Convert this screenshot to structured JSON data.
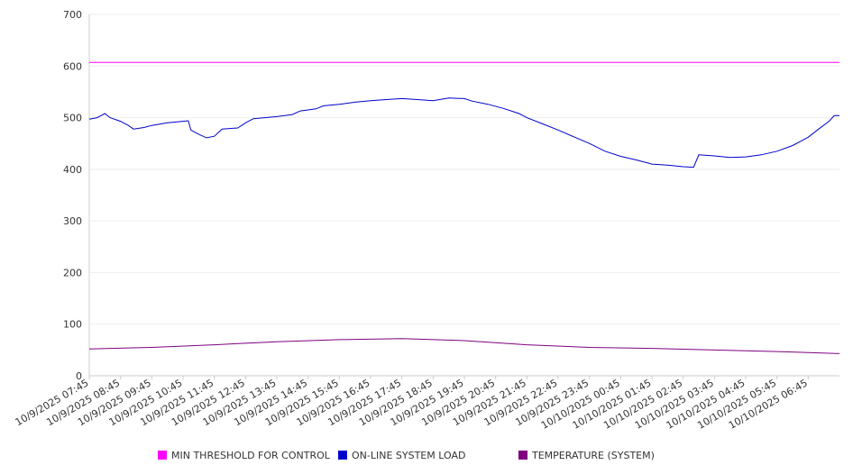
{
  "chart_data": {
    "type": "line",
    "title": "",
    "xlabel": "",
    "ylabel": "",
    "ylim": [
      0,
      700
    ],
    "yticks": [
      0,
      100,
      200,
      300,
      400,
      500,
      600,
      700
    ],
    "grid": true,
    "legend_position": "bottom",
    "xlim": [
      "2025-10-09T07:45",
      "2025-10-10T07:45"
    ],
    "x_tick_labels": [
      "10/9/2025 07:45",
      "10/9/2025 08:45",
      "10/9/2025 09:45",
      "10/9/2025 10:45",
      "10/9/2025 11:45",
      "10/9/2025 12:45",
      "10/9/2025 13:45",
      "10/9/2025 14:45",
      "10/9/2025 15:45",
      "10/9/2025 16:45",
      "10/9/2025 17:45",
      "10/9/2025 18:45",
      "10/9/2025 19:45",
      "10/9/2025 20:45",
      "10/9/2025 21:45",
      "10/9/2025 22:45",
      "10/9/2025 23:45",
      "10/10/2025 00:45",
      "10/10/2025 01:45",
      "10/10/2025 02:45",
      "10/10/2025 03:45",
      "10/10/2025 04:45",
      "10/10/2025 05:45",
      "10/10/2025 06:45"
    ],
    "series": [
      {
        "name": "MIN THRESHOLD FOR CONTROL",
        "color": "#ff00ff",
        "points": [
          [
            "2025-10-09T07:45",
            607
          ],
          [
            "2025-10-10T07:45",
            607
          ]
        ]
      },
      {
        "name": "ON-LINE SYSTEM LOAD",
        "color": "#0000cc",
        "points": [
          [
            "2025-10-09T07:45",
            497
          ],
          [
            "2025-10-09T08:00",
            500
          ],
          [
            "2025-10-09T08:15",
            508
          ],
          [
            "2025-10-09T08:25",
            500
          ],
          [
            "2025-10-09T08:45",
            493
          ],
          [
            "2025-10-09T09:00",
            485
          ],
          [
            "2025-10-09T09:10",
            478
          ],
          [
            "2025-10-09T09:30",
            481
          ],
          [
            "2025-10-09T09:45",
            485
          ],
          [
            "2025-10-09T10:15",
            490
          ],
          [
            "2025-10-09T10:45",
            493
          ],
          [
            "2025-10-09T10:55",
            494
          ],
          [
            "2025-10-09T11:00",
            476
          ],
          [
            "2025-10-09T11:15",
            468
          ],
          [
            "2025-10-09T11:30",
            461
          ],
          [
            "2025-10-09T11:45",
            464
          ],
          [
            "2025-10-09T12:00",
            478
          ],
          [
            "2025-10-09T12:30",
            480
          ],
          [
            "2025-10-09T12:45",
            490
          ],
          [
            "2025-10-09T13:00",
            498
          ],
          [
            "2025-10-09T13:45",
            502
          ],
          [
            "2025-10-09T14:15",
            506
          ],
          [
            "2025-10-09T14:30",
            513
          ],
          [
            "2025-10-09T14:45",
            515
          ],
          [
            "2025-10-09T15:00",
            517
          ],
          [
            "2025-10-09T15:15",
            523
          ],
          [
            "2025-10-09T15:45",
            526
          ],
          [
            "2025-10-09T16:15",
            530
          ],
          [
            "2025-10-09T16:45",
            533
          ],
          [
            "2025-10-09T17:15",
            535
          ],
          [
            "2025-10-09T17:45",
            537
          ],
          [
            "2025-10-09T18:15",
            535
          ],
          [
            "2025-10-09T18:45",
            533
          ],
          [
            "2025-10-09T19:15",
            538
          ],
          [
            "2025-10-09T19:45",
            537
          ],
          [
            "2025-10-09T20:00",
            532
          ],
          [
            "2025-10-09T20:30",
            526
          ],
          [
            "2025-10-09T21:00",
            518
          ],
          [
            "2025-10-09T21:30",
            508
          ],
          [
            "2025-10-09T21:45",
            500
          ],
          [
            "2025-10-09T22:15",
            488
          ],
          [
            "2025-10-09T22:45",
            476
          ],
          [
            "2025-10-09T23:15",
            463
          ],
          [
            "2025-10-09T23:45",
            450
          ],
          [
            "2025-10-10T00:15",
            435
          ],
          [
            "2025-10-10T00:45",
            425
          ],
          [
            "2025-10-10T01:15",
            418
          ],
          [
            "2025-10-10T01:45",
            410
          ],
          [
            "2025-10-10T02:15",
            408
          ],
          [
            "2025-10-10T02:45",
            405
          ],
          [
            "2025-10-10T03:05",
            404
          ],
          [
            "2025-10-10T03:15",
            428
          ],
          [
            "2025-10-10T03:45",
            426
          ],
          [
            "2025-10-10T04:15",
            423
          ],
          [
            "2025-10-10T04:45",
            424
          ],
          [
            "2025-10-10T05:15",
            428
          ],
          [
            "2025-10-10T05:45",
            435
          ],
          [
            "2025-10-10T06:15",
            446
          ],
          [
            "2025-10-10T06:45",
            462
          ],
          [
            "2025-10-10T07:05",
            478
          ],
          [
            "2025-10-10T07:25",
            493
          ],
          [
            "2025-10-10T07:35",
            504
          ],
          [
            "2025-10-10T07:45",
            504
          ]
        ]
      },
      {
        "name": "TEMPERATURE (SYSTEM)",
        "color": "#800080",
        "points": [
          [
            "2025-10-09T07:45",
            52
          ],
          [
            "2025-10-09T09:45",
            55
          ],
          [
            "2025-10-09T11:45",
            60
          ],
          [
            "2025-10-09T13:45",
            66
          ],
          [
            "2025-10-09T15:45",
            70
          ],
          [
            "2025-10-09T17:45",
            72
          ],
          [
            "2025-10-09T19:45",
            68
          ],
          [
            "2025-10-09T21:45",
            60
          ],
          [
            "2025-10-09T23:45",
            55
          ],
          [
            "2025-10-10T01:45",
            53
          ],
          [
            "2025-10-10T03:45",
            50
          ],
          [
            "2025-10-10T05:45",
            47
          ],
          [
            "2025-10-10T07:45",
            43
          ]
        ]
      }
    ]
  }
}
